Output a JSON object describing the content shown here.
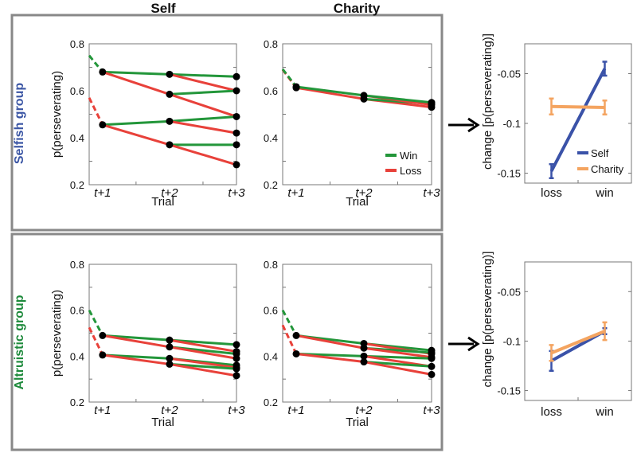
{
  "column_titles": [
    "Self",
    "Charity"
  ],
  "row_titles": [
    {
      "label": "Selfish group",
      "color": "#3a55a4"
    },
    {
      "label": "Altruistic group",
      "color": "#1e8a3c"
    }
  ],
  "colors": {
    "win": "#23963a",
    "loss": "#e8413a",
    "self": "#3a52a8",
    "charity": "#f4a460",
    "frame": "#888888"
  },
  "chart_data": [
    {
      "id": "selfish-self",
      "type": "line",
      "title": "Self",
      "group": "Selfish group",
      "xlabel": "Trial",
      "ylabel": "p(perseverating)",
      "ylim": [
        0.2,
        0.8
      ],
      "yticks": [
        "0.2",
        "0.4",
        "0.6",
        "0.8"
      ],
      "xticks": [
        "t+1",
        "t+2",
        "t+3"
      ],
      "segments": [
        {
          "outcome": "win",
          "dashed": true,
          "from": [
            0.8,
            0.75
          ],
          "to": [
            1,
            0.68
          ]
        },
        {
          "outcome": "loss",
          "dashed": true,
          "from": [
            0.8,
            0.57
          ],
          "to": [
            1,
            0.455
          ]
        },
        {
          "outcome": "win",
          "from": [
            1,
            0.68
          ],
          "to": [
            2,
            0.67
          ]
        },
        {
          "outcome": "loss",
          "from": [
            1,
            0.68
          ],
          "to": [
            2,
            0.585
          ]
        },
        {
          "outcome": "win",
          "from": [
            1,
            0.455
          ],
          "to": [
            2,
            0.47
          ]
        },
        {
          "outcome": "loss",
          "from": [
            1,
            0.455
          ],
          "to": [
            2,
            0.37
          ]
        },
        {
          "outcome": "win",
          "from": [
            2,
            0.67
          ],
          "to": [
            3,
            0.66
          ]
        },
        {
          "outcome": "loss",
          "from": [
            2,
            0.67
          ],
          "to": [
            3,
            0.6
          ]
        },
        {
          "outcome": "win",
          "from": [
            2,
            0.585
          ],
          "to": [
            3,
            0.6
          ]
        },
        {
          "outcome": "loss",
          "from": [
            2,
            0.585
          ],
          "to": [
            3,
            0.49
          ]
        },
        {
          "outcome": "win",
          "from": [
            2,
            0.47
          ],
          "to": [
            3,
            0.49
          ]
        },
        {
          "outcome": "loss",
          "from": [
            2,
            0.47
          ],
          "to": [
            3,
            0.42
          ]
        },
        {
          "outcome": "win",
          "from": [
            2,
            0.37
          ],
          "to": [
            3,
            0.37
          ]
        },
        {
          "outcome": "loss",
          "from": [
            2,
            0.37
          ],
          "to": [
            3,
            0.285
          ]
        }
      ]
    },
    {
      "id": "selfish-charity",
      "type": "line",
      "title": "Charity",
      "group": "Selfish group",
      "xlabel": "Trial",
      "ylabel": "",
      "ylim": [
        0.2,
        0.8
      ],
      "yticks": [
        "0.2",
        "0.4",
        "0.6",
        "0.8"
      ],
      "xticks": [
        "t+1",
        "t+2",
        "t+3"
      ],
      "legend": {
        "placement": "bottom-right",
        "entries": [
          "Win",
          "Loss"
        ]
      },
      "segments": [
        {
          "outcome": "loss",
          "dashed": true,
          "from": [
            0.8,
            0.69
          ],
          "to": [
            1,
            0.613
          ]
        },
        {
          "outcome": "win",
          "dashed": true,
          "from": [
            0.8,
            0.692
          ],
          "to": [
            1,
            0.617
          ]
        },
        {
          "outcome": "loss",
          "from": [
            1,
            0.613
          ],
          "to": [
            2,
            0.565
          ]
        },
        {
          "outcome": "win",
          "from": [
            1,
            0.617
          ],
          "to": [
            2,
            0.58
          ]
        },
        {
          "outcome": "loss",
          "from": [
            2,
            0.565
          ],
          "to": [
            3,
            0.53
          ]
        },
        {
          "outcome": "win",
          "from": [
            2,
            0.565
          ],
          "to": [
            3,
            0.545
          ]
        },
        {
          "outcome": "loss",
          "from": [
            2,
            0.58
          ],
          "to": [
            3,
            0.54
          ]
        },
        {
          "outcome": "win",
          "from": [
            2,
            0.58
          ],
          "to": [
            3,
            0.55
          ]
        }
      ]
    },
    {
      "id": "altruistic-self",
      "type": "line",
      "title": "Self",
      "group": "Altruistic group",
      "xlabel": "Trial",
      "ylabel": "p(perseverating)",
      "ylim": [
        0.2,
        0.8
      ],
      "yticks": [
        "0.2",
        "0.4",
        "0.6",
        "0.8"
      ],
      "xticks": [
        "t+1",
        "t+2",
        "t+3"
      ],
      "segments": [
        {
          "outcome": "win",
          "dashed": true,
          "from": [
            0.8,
            0.6
          ],
          "to": [
            1,
            0.49
          ]
        },
        {
          "outcome": "loss",
          "dashed": true,
          "from": [
            0.8,
            0.525
          ],
          "to": [
            1,
            0.405
          ]
        },
        {
          "outcome": "win",
          "from": [
            1,
            0.49
          ],
          "to": [
            2,
            0.47
          ]
        },
        {
          "outcome": "loss",
          "from": [
            1,
            0.49
          ],
          "to": [
            2,
            0.44
          ]
        },
        {
          "outcome": "win",
          "from": [
            1,
            0.405
          ],
          "to": [
            2,
            0.39
          ]
        },
        {
          "outcome": "loss",
          "from": [
            1,
            0.405
          ],
          "to": [
            2,
            0.365
          ]
        },
        {
          "outcome": "win",
          "from": [
            2,
            0.47
          ],
          "to": [
            3,
            0.45
          ]
        },
        {
          "outcome": "loss",
          "from": [
            2,
            0.47
          ],
          "to": [
            3,
            0.42
          ]
        },
        {
          "outcome": "win",
          "from": [
            2,
            0.44
          ],
          "to": [
            3,
            0.41
          ]
        },
        {
          "outcome": "loss",
          "from": [
            2,
            0.44
          ],
          "to": [
            3,
            0.39
          ]
        },
        {
          "outcome": "win",
          "from": [
            2,
            0.39
          ],
          "to": [
            3,
            0.36
          ]
        },
        {
          "outcome": "loss",
          "from": [
            2,
            0.39
          ],
          "to": [
            3,
            0.35
          ]
        },
        {
          "outcome": "win",
          "from": [
            2,
            0.365
          ],
          "to": [
            3,
            0.345
          ]
        },
        {
          "outcome": "loss",
          "from": [
            2,
            0.365
          ],
          "to": [
            3,
            0.315
          ]
        }
      ]
    },
    {
      "id": "altruistic-charity",
      "type": "line",
      "title": "Charity",
      "group": "Altruistic group",
      "xlabel": "Trial",
      "ylabel": "",
      "ylim": [
        0.2,
        0.8
      ],
      "yticks": [
        "0.2",
        "0.4",
        "0.6",
        "0.8"
      ],
      "xticks": [
        "t+1",
        "t+2",
        "t+3"
      ],
      "segments": [
        {
          "outcome": "win",
          "dashed": true,
          "from": [
            0.8,
            0.6
          ],
          "to": [
            1,
            0.49
          ]
        },
        {
          "outcome": "loss",
          "dashed": true,
          "from": [
            0.8,
            0.535
          ],
          "to": [
            1,
            0.41
          ]
        },
        {
          "outcome": "win",
          "from": [
            1,
            0.49
          ],
          "to": [
            2,
            0.455
          ]
        },
        {
          "outcome": "loss",
          "from": [
            1,
            0.49
          ],
          "to": [
            2,
            0.435
          ]
        },
        {
          "outcome": "win",
          "from": [
            1,
            0.41
          ],
          "to": [
            2,
            0.4
          ]
        },
        {
          "outcome": "loss",
          "from": [
            1,
            0.41
          ],
          "to": [
            2,
            0.375
          ]
        },
        {
          "outcome": "win",
          "from": [
            2,
            0.455
          ],
          "to": [
            3,
            0.425
          ]
        },
        {
          "outcome": "loss",
          "from": [
            2,
            0.455
          ],
          "to": [
            3,
            0.41
          ]
        },
        {
          "outcome": "win",
          "from": [
            2,
            0.435
          ],
          "to": [
            3,
            0.415
          ]
        },
        {
          "outcome": "loss",
          "from": [
            2,
            0.435
          ],
          "to": [
            3,
            0.395
          ]
        },
        {
          "outcome": "win",
          "from": [
            2,
            0.4
          ],
          "to": [
            3,
            0.39
          ]
        },
        {
          "outcome": "loss",
          "from": [
            2,
            0.4
          ],
          "to": [
            3,
            0.355
          ]
        },
        {
          "outcome": "win",
          "from": [
            2,
            0.375
          ],
          "to": [
            3,
            0.355
          ]
        },
        {
          "outcome": "loss",
          "from": [
            2,
            0.375
          ],
          "to": [
            3,
            0.32
          ]
        }
      ]
    },
    {
      "id": "selfish-change",
      "type": "line",
      "group": "Selfish group",
      "xlabel": "",
      "ylabel": "change [p(perseverating)]",
      "ylim": [
        -0.16,
        -0.02
      ],
      "yticks": [
        "-0.15",
        "-0.1",
        "-0.05"
      ],
      "categories": [
        "loss",
        "win"
      ],
      "legend": {
        "placement": "bottom-right",
        "entries": [
          "Self",
          "Charity"
        ]
      },
      "series": [
        {
          "name": "Self",
          "values": [
            -0.148,
            -0.045
          ],
          "errors": [
            0.007,
            0.007
          ]
        },
        {
          "name": "Charity",
          "values": [
            -0.083,
            -0.084
          ],
          "errors": [
            0.008,
            0.007
          ]
        }
      ]
    },
    {
      "id": "altruistic-change",
      "type": "line",
      "group": "Altruistic group",
      "xlabel": "",
      "ylabel": "change [p(perseverating)]",
      "ylim": [
        -0.16,
        -0.02
      ],
      "yticks": [
        "-0.15",
        "-0.1",
        "-0.05"
      ],
      "categories": [
        "loss",
        "win"
      ],
      "series": [
        {
          "name": "Self",
          "values": [
            -0.12,
            -0.09
          ],
          "errors": [
            0.01,
            0.003
          ]
        },
        {
          "name": "Charity",
          "values": [
            -0.112,
            -0.09
          ],
          "errors": [
            0.008,
            0.009
          ]
        }
      ]
    }
  ]
}
